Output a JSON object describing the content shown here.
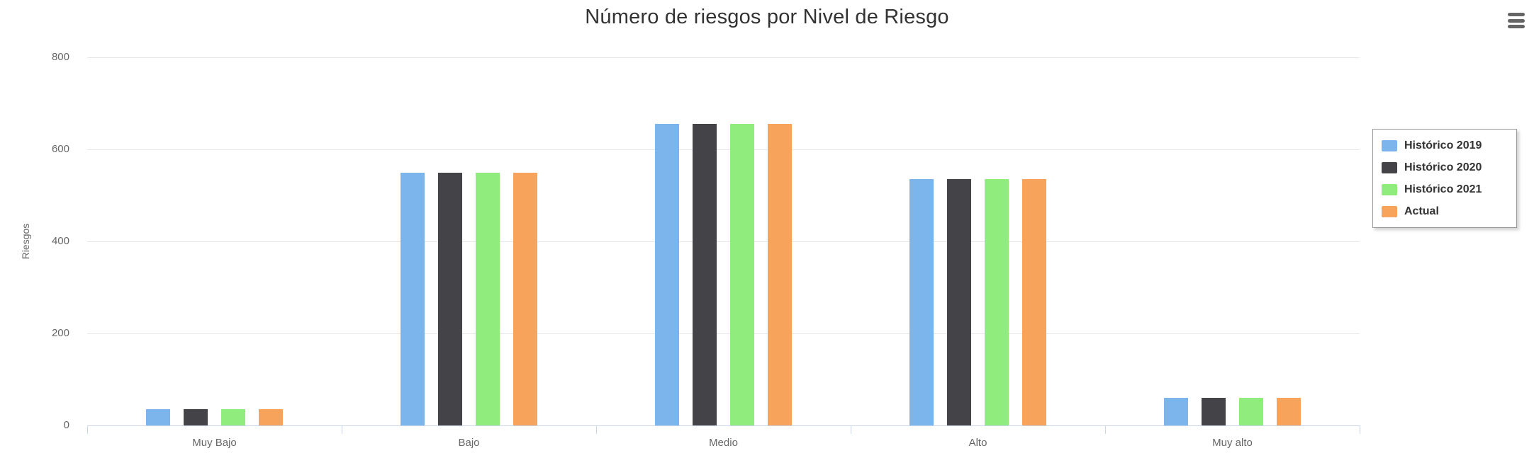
{
  "chart_data": {
    "type": "bar",
    "title": "Número de riesgos por Nivel de Riesgo",
    "xlabel": "",
    "ylabel": "Riesgos",
    "categories": [
      "Muy Bajo",
      "Bajo",
      "Medio",
      "Alto",
      "Muy alto"
    ],
    "series": [
      {
        "name": "Histórico 2019",
        "color": "#7cb5ec",
        "values": [
          35,
          550,
          655,
          535,
          60
        ]
      },
      {
        "name": "Histórico 2020",
        "color": "#434348",
        "values": [
          35,
          550,
          655,
          535,
          60
        ]
      },
      {
        "name": "Histórico 2021",
        "color": "#90ed7d",
        "values": [
          35,
          550,
          655,
          535,
          60
        ]
      },
      {
        "name": "Actual",
        "color": "#f7a35c",
        "values": [
          35,
          550,
          655,
          535,
          60
        ]
      }
    ],
    "ylim": [
      0,
      800
    ],
    "yticks": [
      0,
      200,
      400,
      600,
      800
    ],
    "grid": true,
    "legend_position": "right"
  },
  "icons": {
    "context_menu": "hamburger"
  },
  "colors": {
    "gridline": "#e6e6e6",
    "axis_line": "#ccd6eb",
    "title_text": "#333333",
    "axis_label_text": "#666666",
    "legend_border": "#999999",
    "legend_text": "#333333",
    "background": "#ffffff"
  }
}
